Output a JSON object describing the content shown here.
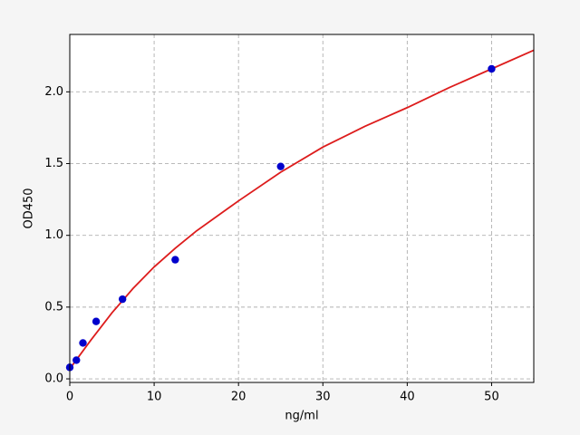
{
  "chart_data": {
    "type": "scatter",
    "x_label": "ng/ml",
    "y_label": "OD450",
    "xlim": [
      0,
      55
    ],
    "ylim": [
      -0.025,
      2.4
    ],
    "xticks": [
      0,
      10,
      20,
      30,
      40,
      50
    ],
    "yticks": [
      {
        "value": 0,
        "label": "0.0"
      },
      0.5,
      {
        "value": 1,
        "label": "1.0"
      },
      1.5,
      {
        "value": 2,
        "label": "2.0"
      }
    ],
    "grid": true,
    "series": [
      {
        "style": "points",
        "color": "#0000cc",
        "x": [
          0,
          0.78,
          1.56,
          3.125,
          6.25,
          12.5,
          25,
          50
        ],
        "values": [
          0.08,
          0.13,
          0.25,
          0.4,
          0.555,
          0.83,
          1.48,
          2.16
        ]
      },
      {
        "style": "line",
        "color": "#dd1c1c",
        "x": [
          0,
          1,
          2.5,
          5,
          7.5,
          10,
          12.5,
          15,
          20,
          25,
          30,
          35,
          40,
          45,
          50,
          55
        ],
        "values": [
          0.07,
          0.15,
          0.27,
          0.46,
          0.63,
          0.78,
          0.91,
          1.03,
          1.24,
          1.44,
          1.615,
          1.76,
          1.89,
          2.03,
          2.16,
          2.29
        ]
      }
    ]
  }
}
